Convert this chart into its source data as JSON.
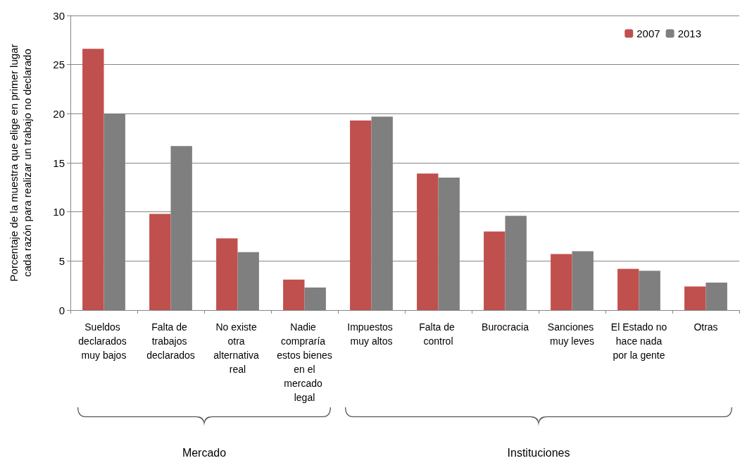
{
  "chart_data": {
    "type": "bar",
    "ylabel": "Porcentaje de la muestra que elige en primer lugar\ncada razón para realizar un trabajo no declarado",
    "categories": [
      "Sueldos declarados muy bajos",
      "Falta de trabajos declarados",
      "No existe otra alternativa real",
      "Nadie compraría estos bienes en el mercado legal",
      "Impuestos muy altos",
      "Falta de control",
      "Burocracia",
      "Sanciones muy leves",
      "El Estado no hace nada por la gente",
      "Otras"
    ],
    "series": [
      {
        "name": "2007",
        "color": "#c0504d",
        "values": [
          26.6,
          9.8,
          7.3,
          3.1,
          19.3,
          13.9,
          8.0,
          5.7,
          4.2,
          2.4
        ]
      },
      {
        "name": "2013",
        "color": "#7f7f7f",
        "values": [
          20.0,
          16.7,
          5.9,
          2.3,
          19.7,
          13.5,
          9.6,
          6.0,
          4.0,
          2.8
        ]
      }
    ],
    "ylim": [
      0,
      30
    ],
    "yticks": [
      0,
      5,
      10,
      15,
      20,
      25,
      30
    ],
    "grid": "y",
    "legend": "top right",
    "annotations": [
      "Mercado",
      "Instituciones"
    ]
  }
}
